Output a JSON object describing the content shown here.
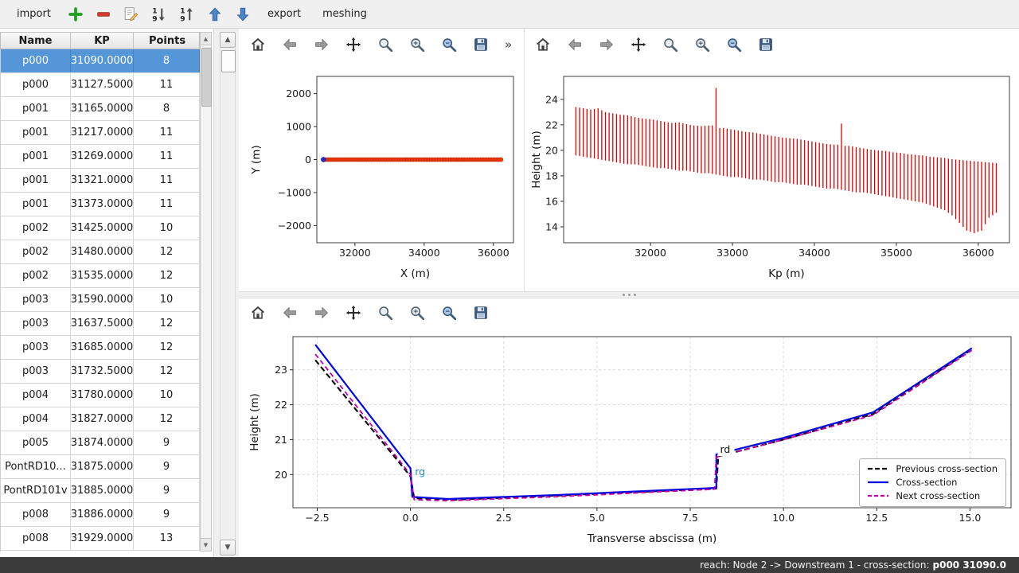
{
  "app_toolbar": {
    "items": [
      {
        "kind": "button",
        "name": "import-button",
        "label": "import"
      },
      {
        "kind": "icon",
        "name": "add-section-button",
        "icon": "plus"
      },
      {
        "kind": "icon",
        "name": "remove-section-button",
        "icon": "minus"
      },
      {
        "kind": "icon",
        "name": "edit-section-button",
        "icon": "edit"
      },
      {
        "kind": "icon",
        "name": "sort-descending-button",
        "icon": "sortdesc"
      },
      {
        "kind": "icon",
        "name": "sort-ascending-button",
        "icon": "sortasc"
      },
      {
        "kind": "icon",
        "name": "move-up-button",
        "icon": "arrowup"
      },
      {
        "kind": "icon",
        "name": "move-down-button",
        "icon": "arrowdown"
      },
      {
        "kind": "button",
        "name": "export-button",
        "label": "export"
      },
      {
        "kind": "button",
        "name": "meshing-button",
        "label": "meshing"
      }
    ]
  },
  "mpl_toolbar": {
    "overflow": "»",
    "icons": [
      {
        "name": "home-icon",
        "icon": "home"
      },
      {
        "name": "back-icon",
        "icon": "back"
      },
      {
        "name": "forward-icon",
        "icon": "forward"
      },
      {
        "name": "pan-icon",
        "icon": "pan"
      },
      {
        "name": "zoom-icon",
        "icon": "zoom"
      },
      {
        "name": "configure-subplots-icon",
        "icon": "subplots"
      },
      {
        "name": "edit-parameters-icon",
        "icon": "zoomedit"
      },
      {
        "name": "save-icon",
        "icon": "save"
      }
    ]
  },
  "scrollbar": {
    "up": "▲",
    "down": "▼"
  },
  "table": {
    "columns": [
      "Name",
      "KP",
      "Points"
    ],
    "selected_index": 0,
    "rows": [
      [
        "p000",
        "31090.0000",
        "8"
      ],
      [
        "p000",
        "31127.5000",
        "11"
      ],
      [
        "p001",
        "31165.0000",
        "8"
      ],
      [
        "p001",
        "31217.0000",
        "11"
      ],
      [
        "p001",
        "31269.0000",
        "11"
      ],
      [
        "p001",
        "31321.0000",
        "11"
      ],
      [
        "p001",
        "31373.0000",
        "11"
      ],
      [
        "p002",
        "31425.0000",
        "10"
      ],
      [
        "p002",
        "31480.0000",
        "12"
      ],
      [
        "p002",
        "31535.0000",
        "12"
      ],
      [
        "p003",
        "31590.0000",
        "10"
      ],
      [
        "p003",
        "31637.5000",
        "12"
      ],
      [
        "p003",
        "31685.0000",
        "12"
      ],
      [
        "p003",
        "31732.5000",
        "12"
      ],
      [
        "p004",
        "31780.0000",
        "10"
      ],
      [
        "p004",
        "31827.0000",
        "12"
      ],
      [
        "p005",
        "31874.0000",
        "9"
      ],
      [
        "PontRD10...",
        "31875.0000",
        "9"
      ],
      [
        "PontRD101v",
        "31885.0000",
        "9"
      ],
      [
        "p008",
        "31886.0000",
        "9"
      ],
      [
        "p008",
        "31929.0000",
        "13"
      ]
    ]
  },
  "chart_data": [
    {
      "id": "plan-view",
      "type": "scatter",
      "grid": false,
      "xlabel": "X (m)",
      "ylabel": "Y (m)",
      "xlim": [
        30900,
        36580
      ],
      "ylim": [
        -2520,
        2520
      ],
      "xticks": [
        {
          "v": 32000,
          "label": "32000"
        },
        {
          "v": 34000,
          "label": "34000"
        },
        {
          "v": 36000,
          "label": "36000"
        }
      ],
      "yticks": [
        {
          "v": -2000,
          "label": "−2000"
        },
        {
          "v": -1000,
          "label": "−1000"
        },
        {
          "v": 0,
          "label": "0"
        },
        {
          "v": 1000,
          "label": "1000"
        },
        {
          "v": 2000,
          "label": "2000"
        }
      ],
      "series": [
        {
          "name": "river-axis-points",
          "color": "#f93a00",
          "edge": "#c22b00",
          "r": 2.4,
          "gen": {
            "x_start": 31135,
            "x_end": 36220,
            "n": 112,
            "y": 0
          }
        },
        {
          "name": "selected-section-point",
          "color": "#2a2ad8",
          "edge": "#1515a8",
          "r": 2.8,
          "points": [
            [
              31090,
              0
            ]
          ]
        }
      ]
    },
    {
      "id": "longitudinal-profile",
      "type": "bars",
      "grid": false,
      "xlabel": "Kp (m)",
      "ylabel": "Height (m)",
      "xlim": [
        30940,
        36380
      ],
      "ylim": [
        12.75,
        25.8
      ],
      "xticks": [
        {
          "v": 32000,
          "label": "32000"
        },
        {
          "v": 33000,
          "label": "33000"
        },
        {
          "v": 34000,
          "label": "34000"
        },
        {
          "v": 35000,
          "label": "35000"
        },
        {
          "v": 36000,
          "label": "36000"
        }
      ],
      "yticks": [
        {
          "v": 14,
          "label": "14"
        },
        {
          "v": 16,
          "label": "16"
        },
        {
          "v": 18,
          "label": "18"
        },
        {
          "v": 20,
          "label": "20"
        },
        {
          "v": 22,
          "label": "22"
        },
        {
          "v": 24,
          "label": "24"
        }
      ],
      "bar_color": "#e00000",
      "bars": [
        [
          31090,
          19.6,
          23.4
        ],
        [
          31180,
          19.5,
          23.3
        ],
        [
          31270,
          19.4,
          23.2
        ],
        [
          31360,
          19.3,
          23.3
        ],
        [
          31450,
          19.2,
          23.0
        ],
        [
          31540,
          19.1,
          22.9
        ],
        [
          31630,
          19.0,
          22.8
        ],
        [
          31720,
          18.9,
          22.75
        ],
        [
          31810,
          18.9,
          22.6
        ],
        [
          31900,
          18.8,
          22.5
        ],
        [
          31990,
          18.7,
          22.45
        ],
        [
          32080,
          18.6,
          22.35
        ],
        [
          32170,
          18.6,
          22.25
        ],
        [
          32260,
          18.5,
          22.15
        ],
        [
          32350,
          18.4,
          22.2
        ],
        [
          32440,
          18.4,
          22.05
        ],
        [
          32530,
          18.3,
          21.95
        ],
        [
          32620,
          18.2,
          21.9
        ],
        [
          32710,
          18.2,
          21.95
        ],
        [
          32800,
          18.1,
          24.9
        ],
        [
          32890,
          18.0,
          21.75
        ],
        [
          32980,
          17.9,
          21.65
        ],
        [
          33070,
          17.9,
          21.55
        ],
        [
          33160,
          17.8,
          21.45
        ],
        [
          33250,
          17.7,
          21.4
        ],
        [
          33340,
          17.7,
          21.3
        ],
        [
          33430,
          17.6,
          21.2
        ],
        [
          33520,
          17.5,
          21.1
        ],
        [
          33610,
          17.5,
          21.0
        ],
        [
          33700,
          17.4,
          20.95
        ],
        [
          33790,
          17.3,
          20.9
        ],
        [
          33880,
          17.3,
          20.8
        ],
        [
          33970,
          17.2,
          20.7
        ],
        [
          34060,
          17.1,
          20.6
        ],
        [
          34150,
          17.0,
          20.5
        ],
        [
          34240,
          17.0,
          20.45
        ],
        [
          34330,
          16.9,
          22.1
        ],
        [
          34420,
          16.8,
          20.35
        ],
        [
          34510,
          16.7,
          20.25
        ],
        [
          34600,
          16.7,
          20.15
        ],
        [
          34690,
          16.6,
          20.05
        ],
        [
          34780,
          16.5,
          20.0
        ],
        [
          34870,
          16.4,
          19.95
        ],
        [
          34960,
          16.3,
          19.85
        ],
        [
          35050,
          16.2,
          19.8
        ],
        [
          35140,
          16.1,
          19.7
        ],
        [
          35230,
          16.0,
          19.65
        ],
        [
          35320,
          15.9,
          19.6
        ],
        [
          35410,
          15.7,
          19.5
        ],
        [
          35500,
          15.5,
          19.45
        ],
        [
          35590,
          15.3,
          19.4
        ],
        [
          35680,
          14.9,
          19.3
        ],
        [
          35770,
          14.3,
          19.25
        ],
        [
          35860,
          13.7,
          19.2
        ],
        [
          35950,
          13.5,
          19.15
        ],
        [
          36040,
          13.7,
          19.1
        ],
        [
          36130,
          14.7,
          19.05
        ],
        [
          36220,
          15.1,
          19.0
        ]
      ]
    },
    {
      "id": "cross-section",
      "type": "line",
      "grid": true,
      "xlabel": "Transverse abscissa (m)",
      "ylabel": "Height (m)",
      "xlim": [
        -3.15,
        16.1
      ],
      "ylim": [
        19.05,
        23.95
      ],
      "xticks": [
        {
          "v": -2.5,
          "label": "−2.5"
        },
        {
          "v": 0,
          "label": "0.0"
        },
        {
          "v": 2.5,
          "label": "2.5"
        },
        {
          "v": 5,
          "label": "5.0"
        },
        {
          "v": 7.5,
          "label": "7.5"
        },
        {
          "v": 10,
          "label": "10.0"
        },
        {
          "v": 12.5,
          "label": "12.5"
        },
        {
          "v": 15,
          "label": "15.0"
        }
      ],
      "yticks": [
        {
          "v": 20,
          "label": "20"
        },
        {
          "v": 21,
          "label": "21"
        },
        {
          "v": 22,
          "label": "22"
        },
        {
          "v": 23,
          "label": "23"
        }
      ],
      "series": [
        {
          "name": "previous-cross-section",
          "label": "Previous cross-section",
          "color": "#111111",
          "dash": "7 4",
          "width": 2.2,
          "points": [
            [
              -2.55,
              23.28
            ],
            [
              0.0,
              19.95
            ],
            [
              0.1,
              19.32
            ],
            [
              1.2,
              19.28
            ],
            [
              4.0,
              19.4
            ],
            [
              8.2,
              19.6
            ],
            [
              8.25,
              20.52
            ],
            [
              10.0,
              21.0
            ],
            [
              12.4,
              21.73
            ],
            [
              15.0,
              23.55
            ]
          ]
        },
        {
          "name": "cross-section",
          "label": "Cross-section",
          "color": "#0008dd",
          "dash": null,
          "width": 2.2,
          "points": [
            [
              -2.55,
              23.72
            ],
            [
              0.0,
              20.18
            ],
            [
              0.05,
              19.36
            ],
            [
              1.0,
              19.3
            ],
            [
              4.0,
              19.42
            ],
            [
              8.2,
              19.62
            ],
            [
              8.2,
              20.58
            ],
            [
              10.0,
              21.05
            ],
            [
              12.4,
              21.78
            ],
            [
              15.05,
              23.62
            ]
          ]
        },
        {
          "name": "next-cross-section",
          "label": "Next cross-section",
          "color": "#c800a8",
          "dash": "6 4",
          "width": 1.8,
          "points": [
            [
              -2.55,
              23.45
            ],
            [
              0.0,
              20.0
            ],
            [
              0.1,
              19.28
            ],
            [
              1.0,
              19.25
            ],
            [
              4.0,
              19.37
            ],
            [
              8.15,
              19.58
            ],
            [
              8.2,
              20.5
            ],
            [
              10.0,
              21.0
            ],
            [
              12.4,
              21.7
            ],
            [
              15.05,
              23.56
            ]
          ]
        }
      ],
      "annotations": [
        {
          "text": "rg",
          "x": 0.12,
          "y": 19.98,
          "color": "#1f8fbf",
          "boxed": false
        },
        {
          "text": "rd",
          "x": 8.3,
          "y": 20.62,
          "color": "#111111",
          "boxed": true
        }
      ],
      "legend": [
        {
          "label": "Previous cross-section",
          "color": "#111111",
          "dash": "6 3"
        },
        {
          "label": "Cross-section",
          "color": "#0008dd",
          "dash": null
        },
        {
          "label": "Next cross-section",
          "color": "#c800a8",
          "dash": "5 3"
        }
      ]
    }
  ],
  "status_bar": {
    "prefix": "reach: Node 2 -> Downstream 1 - cross-section: ",
    "highlight": "p000 31090.0"
  }
}
